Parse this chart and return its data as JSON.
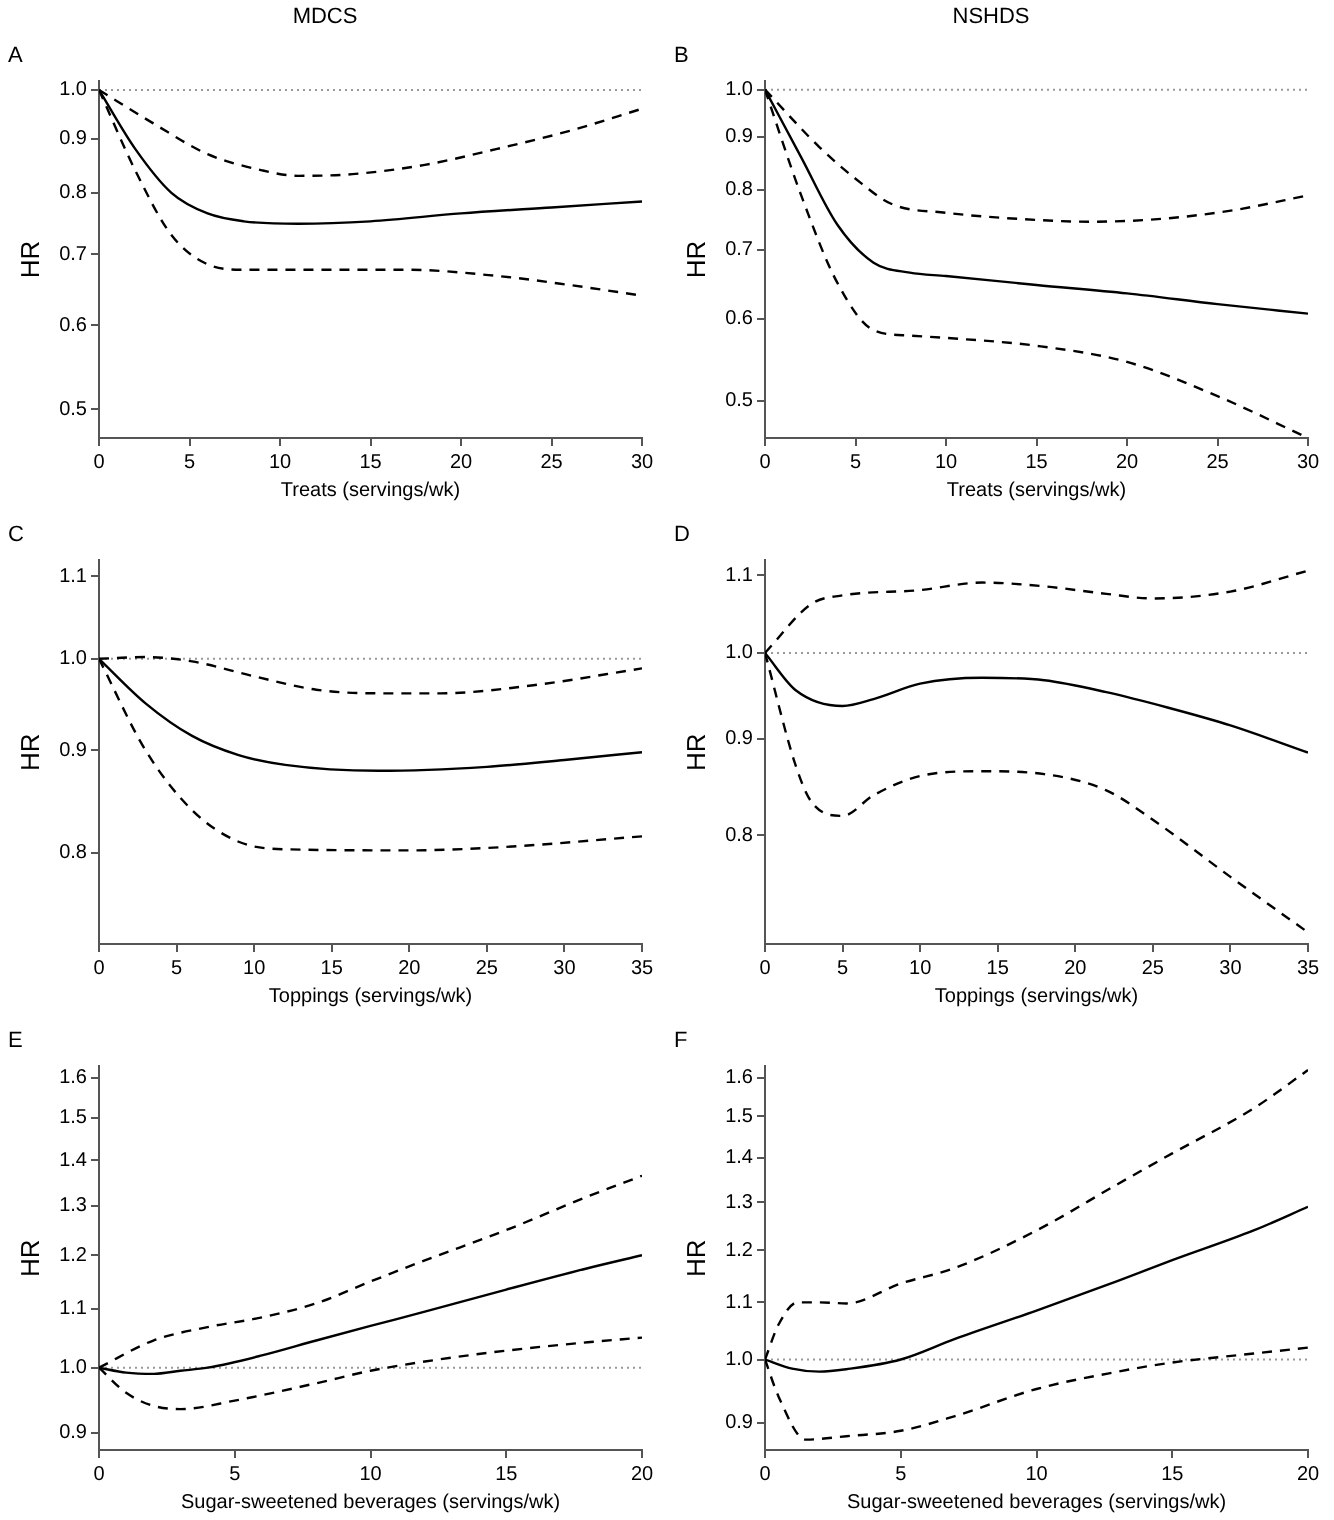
{
  "chart_data": [
    {
      "type": "line",
      "title": "MDCS",
      "subtitle": "A",
      "xlabel": "Treats (servings/wk)",
      "ylabel": "HR",
      "log": "y",
      "grid": false,
      "legend": false,
      "marker": "none",
      "xlim": [
        0,
        30
      ],
      "xticks": [
        0,
        5,
        10,
        15,
        20,
        25,
        30
      ],
      "ylim": [
        0.47,
        1.02
      ],
      "yticks": [
        {
          "value": 0.5,
          "label": "0.5"
        },
        {
          "value": 0.6,
          "label": "0.6"
        },
        {
          "value": 0.7,
          "label": "0.7"
        },
        {
          "value": 0.8,
          "label": "0.8"
        },
        {
          "value": 0.9,
          "label": "0.9"
        },
        {
          "value": 1,
          "label": "1.0"
        }
      ],
      "ref_lines": [
        {
          "axis": "y",
          "value": 1,
          "color": "#999999",
          "line_style": "dotted"
        }
      ],
      "series": [
        {
          "color": "#000000",
          "line_style": "solid",
          "x": [
            0,
            2,
            4,
            6,
            8,
            11,
            15,
            20,
            25,
            30
          ],
          "values": [
            1,
            0.88,
            0.8,
            0.765,
            0.752,
            0.748,
            0.752,
            0.765,
            0.775,
            0.785
          ]
        },
        {
          "color": "#000000",
          "line_style": "dashed",
          "x": [
            0,
            3,
            6,
            9,
            11,
            14,
            18,
            22,
            26,
            30
          ],
          "values": [
            1,
            0.93,
            0.87,
            0.84,
            0.83,
            0.833,
            0.85,
            0.88,
            0.915,
            0.96
          ]
        },
        {
          "color": "#000000",
          "line_style": "dashed",
          "x": [
            0,
            2,
            4,
            6,
            8,
            12,
            17,
            22,
            26,
            30
          ],
          "values": [
            1,
            0.84,
            0.73,
            0.685,
            0.677,
            0.677,
            0.677,
            0.668,
            0.655,
            0.64
          ]
        }
      ]
    },
    {
      "type": "line",
      "title": "NSHDS",
      "subtitle": "B",
      "xlabel": "Treats (servings/wk)",
      "ylabel": "HR",
      "log": "y",
      "grid": false,
      "legend": false,
      "marker": "none",
      "xlim": [
        0,
        30
      ],
      "xticks": [
        0,
        5,
        10,
        15,
        20,
        25,
        30
      ],
      "ylim": [
        0.46,
        1.02
      ],
      "yticks": [
        {
          "value": 0.5,
          "label": "0.5"
        },
        {
          "value": 0.6,
          "label": "0.6"
        },
        {
          "value": 0.7,
          "label": "0.7"
        },
        {
          "value": 0.8,
          "label": "0.8"
        },
        {
          "value": 0.9,
          "label": "0.9"
        },
        {
          "value": 1,
          "label": "1.0"
        }
      ],
      "ref_lines": [
        {
          "axis": "y",
          "value": 1,
          "color": "#999999",
          "line_style": "dotted"
        }
      ],
      "series": [
        {
          "color": "#000000",
          "line_style": "solid",
          "x": [
            0,
            2,
            4,
            6,
            8,
            10,
            15,
            20,
            25,
            30
          ],
          "values": [
            1,
            0.86,
            0.74,
            0.68,
            0.665,
            0.66,
            0.647,
            0.635,
            0.62,
            0.607
          ]
        },
        {
          "color": "#000000",
          "line_style": "dashed",
          "x": [
            0,
            3,
            5,
            7,
            10,
            15,
            18,
            22,
            26,
            30
          ],
          "values": [
            1,
            0.88,
            0.82,
            0.775,
            0.76,
            0.748,
            0.745,
            0.75,
            0.765,
            0.79
          ]
        },
        {
          "color": "#000000",
          "line_style": "dashed",
          "x": [
            0,
            2,
            4,
            6,
            8,
            10,
            15,
            20,
            25,
            30
          ],
          "values": [
            1,
            0.79,
            0.65,
            0.585,
            0.578,
            0.575,
            0.565,
            0.545,
            0.505,
            0.46
          ]
        }
      ]
    },
    {
      "type": "line",
      "subtitle": "C",
      "xlabel": "Toppings (servings/wk)",
      "ylabel": "HR",
      "log": "y",
      "grid": false,
      "legend": false,
      "marker": "none",
      "xlim": [
        0,
        35
      ],
      "xticks": [
        0,
        5,
        10,
        15,
        20,
        25,
        30,
        35
      ],
      "ylim": [
        0.72,
        1.12
      ],
      "yticks": [
        {
          "value": 0.8,
          "label": "0.8"
        },
        {
          "value": 0.9,
          "label": "0.9"
        },
        {
          "value": 1,
          "label": "1.0"
        },
        {
          "value": 1.1,
          "label": "1.1"
        }
      ],
      "ref_lines": [
        {
          "axis": "y",
          "value": 1,
          "color": "#999999",
          "line_style": "dotted"
        }
      ],
      "series": [
        {
          "color": "#000000",
          "line_style": "solid",
          "x": [
            0,
            3,
            6,
            9,
            12,
            18,
            25,
            30,
            35
          ],
          "values": [
            1,
            0.95,
            0.915,
            0.895,
            0.885,
            0.879,
            0.883,
            0.89,
            0.898
          ]
        },
        {
          "color": "#000000",
          "line_style": "dashed",
          "x": [
            0,
            3,
            6,
            10,
            14,
            18,
            22,
            28,
            35
          ],
          "values": [
            1,
            1.002,
            0.997,
            0.98,
            0.965,
            0.961,
            0.961,
            0.97,
            0.989
          ]
        },
        {
          "color": "#000000",
          "line_style": "dashed",
          "x": [
            0,
            3,
            6,
            9,
            12,
            20,
            26,
            35
          ],
          "values": [
            1,
            0.9,
            0.84,
            0.81,
            0.803,
            0.802,
            0.805,
            0.815
          ]
        }
      ]
    },
    {
      "type": "line",
      "subtitle": "D",
      "xlabel": "Toppings (servings/wk)",
      "ylabel": "HR",
      "log": "y",
      "grid": false,
      "legend": false,
      "marker": "none",
      "xlim": [
        0,
        35
      ],
      "xticks": [
        0,
        5,
        10,
        15,
        20,
        25,
        30,
        35
      ],
      "ylim": [
        0.7,
        1.12
      ],
      "yticks": [
        {
          "value": 0.8,
          "label": "0.8"
        },
        {
          "value": 0.9,
          "label": "0.9"
        },
        {
          "value": 1,
          "label": "1.0"
        },
        {
          "value": 1.1,
          "label": "1.1"
        }
      ],
      "ref_lines": [
        {
          "axis": "y",
          "value": 1,
          "color": "#999999",
          "line_style": "dotted"
        }
      ],
      "series": [
        {
          "color": "#000000",
          "line_style": "solid",
          "x": [
            0,
            2,
            5,
            7,
            10,
            14,
            18,
            22,
            26,
            30,
            35
          ],
          "values": [
            1,
            0.955,
            0.937,
            0.945,
            0.963,
            0.97,
            0.967,
            0.953,
            0.935,
            0.915,
            0.885
          ]
        },
        {
          "color": "#000000",
          "line_style": "dashed",
          "x": [
            0,
            3,
            5,
            10,
            14,
            18,
            22,
            25,
            30,
            35
          ],
          "values": [
            1,
            1.062,
            1.073,
            1.08,
            1.09,
            1.085,
            1.075,
            1.069,
            1.078,
            1.106
          ]
        },
        {
          "color": "#000000",
          "line_style": "dashed",
          "x": [
            0,
            2,
            3,
            5,
            7,
            10,
            14,
            18,
            22,
            25,
            30,
            35
          ],
          "values": [
            1,
            0.87,
            0.833,
            0.819,
            0.84,
            0.86,
            0.865,
            0.862,
            0.845,
            0.815,
            0.76,
            0.71
          ]
        }
      ]
    },
    {
      "type": "line",
      "subtitle": "E",
      "xlabel": "Sugar-sweetened beverages (servings/wk)",
      "ylabel": "HR",
      "log": "y",
      "grid": false,
      "legend": false,
      "marker": "none",
      "xlim": [
        0,
        20
      ],
      "xticks": [
        0,
        5,
        10,
        15,
        20
      ],
      "ylim": [
        0.875,
        1.63
      ],
      "yticks": [
        {
          "value": 0.9,
          "label": "0.9"
        },
        {
          "value": 1,
          "label": "1.0"
        },
        {
          "value": 1.1,
          "label": "1.1"
        },
        {
          "value": 1.2,
          "label": "1.2"
        },
        {
          "value": 1.3,
          "label": "1.3"
        },
        {
          "value": 1.4,
          "label": "1.4"
        },
        {
          "value": 1.5,
          "label": "1.5"
        },
        {
          "value": 1.6,
          "label": "1.6"
        }
      ],
      "ref_lines": [
        {
          "axis": "y",
          "value": 1,
          "color": "#999999",
          "line_style": "dotted"
        }
      ],
      "series": [
        {
          "color": "#000000",
          "line_style": "solid",
          "x": [
            0,
            1,
            2,
            3,
            4,
            6,
            8,
            10,
            12,
            15,
            18,
            20
          ],
          "values": [
            1,
            0.992,
            0.99,
            0.995,
            1,
            1.02,
            1.045,
            1.07,
            1.095,
            1.135,
            1.175,
            1.2
          ]
        },
        {
          "color": "#000000",
          "line_style": "dashed",
          "x": [
            0,
            2,
            4,
            6,
            8,
            10,
            12,
            15,
            18,
            20
          ],
          "values": [
            1,
            1.045,
            1.068,
            1.085,
            1.11,
            1.15,
            1.19,
            1.25,
            1.32,
            1.365
          ]
        },
        {
          "color": "#000000",
          "line_style": "dashed",
          "x": [
            0,
            1,
            2,
            3,
            5,
            8,
            10,
            12,
            15,
            18,
            20
          ],
          "values": [
            1,
            0.96,
            0.94,
            0.935,
            0.948,
            0.975,
            0.995,
            1.01,
            1.028,
            1.042,
            1.05
          ]
        }
      ]
    },
    {
      "type": "line",
      "subtitle": "F",
      "xlabel": "Sugar-sweetened beverages (servings/wk)",
      "ylabel": "HR",
      "log": "y",
      "grid": false,
      "legend": false,
      "marker": "none",
      "xlim": [
        0,
        20
      ],
      "xticks": [
        0,
        5,
        10,
        15,
        20
      ],
      "ylim": [
        0.863,
        1.63
      ],
      "yticks": [
        {
          "value": 0.9,
          "label": "0.9"
        },
        {
          "value": 1,
          "label": "1.0"
        },
        {
          "value": 1.1,
          "label": "1.1"
        },
        {
          "value": 1.2,
          "label": "1.2"
        },
        {
          "value": 1.3,
          "label": "1.3"
        },
        {
          "value": 1.4,
          "label": "1.4"
        },
        {
          "value": 1.5,
          "label": "1.5"
        },
        {
          "value": 1.6,
          "label": "1.6"
        }
      ],
      "ref_lines": [
        {
          "axis": "y",
          "value": 1,
          "color": "#999999",
          "line_style": "dotted"
        }
      ],
      "series": [
        {
          "color": "#000000",
          "line_style": "solid",
          "x": [
            0,
            1,
            2,
            3,
            5,
            7,
            10,
            13,
            15,
            18,
            20
          ],
          "values": [
            1,
            0.985,
            0.98,
            0.984,
            1,
            1.035,
            1.085,
            1.14,
            1.18,
            1.24,
            1.29
          ]
        },
        {
          "color": "#000000",
          "line_style": "dashed",
          "x": [
            0,
            0.5,
            1.2,
            2,
            3,
            5,
            7,
            10,
            13,
            15,
            18,
            20
          ],
          "values": [
            1,
            1.06,
            1.1,
            1.1,
            1.098,
            1.135,
            1.165,
            1.24,
            1.34,
            1.41,
            1.52,
            1.62
          ]
        },
        {
          "color": "#000000",
          "line_style": "dashed",
          "x": [
            0,
            0.5,
            1.5,
            3,
            5,
            7,
            10,
            13,
            15,
            18,
            20
          ],
          "values": [
            1,
            0.94,
            0.875,
            0.88,
            0.888,
            0.91,
            0.952,
            0.98,
            0.995,
            1.01,
            1.02
          ]
        }
      ]
    }
  ]
}
